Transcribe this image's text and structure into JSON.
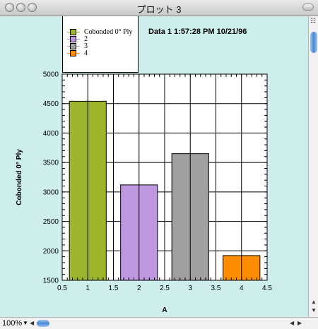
{
  "window": {
    "title": "プロット 3"
  },
  "chart_data": {
    "type": "bar",
    "x": [
      1,
      2,
      3,
      4
    ],
    "values": [
      4540,
      3120,
      3650,
      1920
    ],
    "bar_colors": [
      "#9cb52b",
      "#bd97df",
      "#a0a0a0",
      "#ff8c00"
    ],
    "bar_width": 0.72,
    "xlim": [
      0.5,
      4.5
    ],
    "ylim": [
      1500,
      5000
    ],
    "xticks": [
      "0.5",
      "1",
      "1.5",
      "2",
      "2.5",
      "3",
      "3.5",
      "4",
      "4.5"
    ],
    "yticks": [
      "1500",
      "2000",
      "2500",
      "3000",
      "3500",
      "4000",
      "4500",
      "5000"
    ],
    "xlabel": "A",
    "ylabel": "Cobonded 0° Ply",
    "grid": true,
    "legend": {
      "placement": "top-left",
      "entries": [
        {
          "label": "Cobonded 0° Ply",
          "color": "#9cb52b"
        },
        {
          "label": "2",
          "color": "#bd97df"
        },
        {
          "label": "3",
          "color": "#a0a0a0"
        },
        {
          "label": "4",
          "color": "#ff8c00"
        }
      ]
    },
    "stamp": "Data 1 1:57:28 PM 10/21/96"
  },
  "status": {
    "zoom": "100%"
  },
  "icons": {
    "close": "circle-button-icon",
    "minimize": "circle-button-icon",
    "zoom": "circle-button-icon",
    "scroll_up": "arrow-up-icon",
    "scroll_down": "arrow-down-icon",
    "scroll_left": "arrow-left-icon",
    "scroll_right": "arrow-right-icon"
  }
}
